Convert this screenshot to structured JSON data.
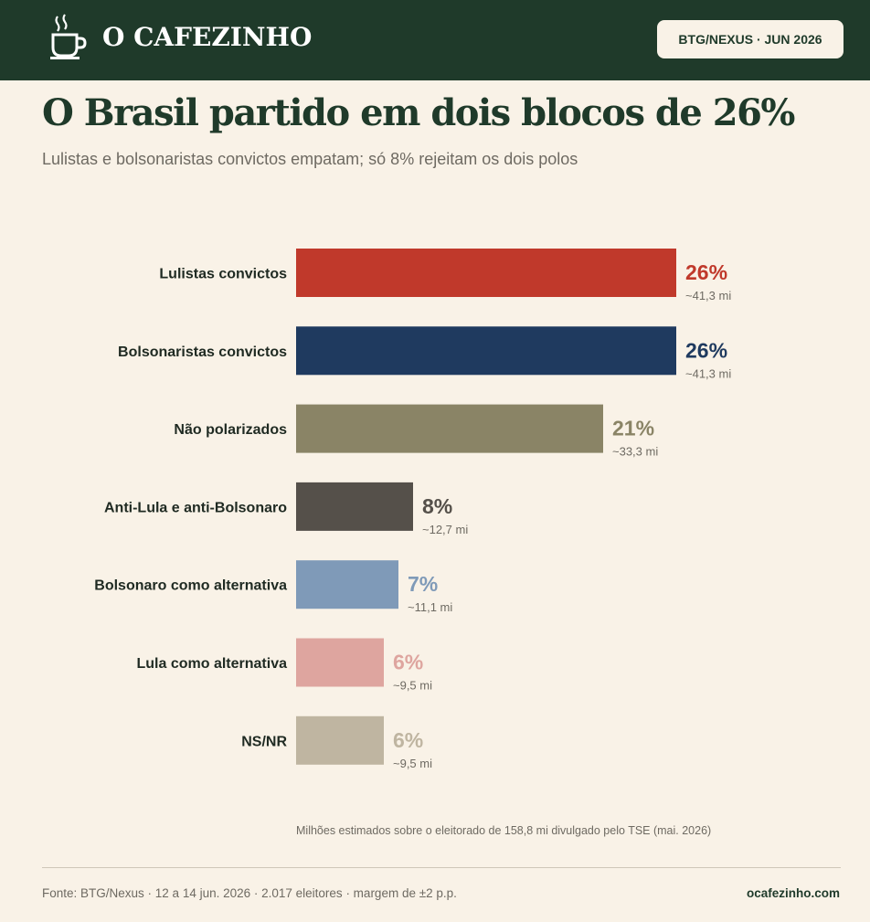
{
  "header": {
    "brand": "O CAFEZINHO",
    "badge": "BTG/NEXUS · JUN 2026",
    "brand_color": "#1f3a2a"
  },
  "chart_data": {
    "type": "bar",
    "orientation": "horizontal",
    "title": "O Brasil partido em dois blocos de 26%",
    "subtitle": "Lulistas e bolsonaristas convictos empatam; só 8% rejeitam os dois polos",
    "categories": [
      "Lulistas convictos",
      "Bolsonaristas convictos",
      "Não polarizados",
      "Anti-Lula e anti-Bolsonaro",
      "Bolsonaro como alternativa",
      "Lula como alternativa",
      "NS/NR"
    ],
    "values": [
      26,
      26,
      21,
      8,
      7,
      6,
      6
    ],
    "value_labels": [
      "26%",
      "26%",
      "21%",
      "8%",
      "7%",
      "6%",
      "6%"
    ],
    "sub_labels": [
      "~41,3 mi",
      "~41,3 mi",
      "~33,3 mi",
      "~12,7 mi",
      "~11,1 mi",
      "~9,5 mi",
      "~9,5 mi"
    ],
    "colors": [
      "#c0392b",
      "#1f3a5f",
      "#8a8466",
      "#55504a",
      "#7f9ab8",
      "#dea59f",
      "#bfb5a1"
    ],
    "xlim": [
      0,
      26
    ],
    "grid": false,
    "legend": "none",
    "note": "Milhões estimados sobre o eleitorado de 158,8 mi divulgado pelo TSE (mai. 2026)"
  },
  "footer": {
    "source": "Fonte: BTG/Nexus · 12 a 14 jun. 2026 · 2.017 eleitores · margem de ±2 p.p.",
    "site": "ocafezinho.com"
  }
}
